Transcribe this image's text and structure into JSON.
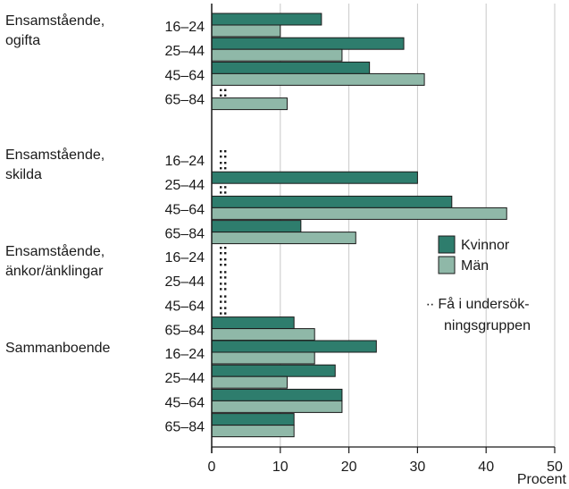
{
  "chart_data": {
    "type": "bar",
    "orientation": "horizontal",
    "xlabel": "Procent",
    "xlim": [
      0,
      50
    ],
    "xticks": [
      0,
      10,
      20,
      30,
      40,
      50
    ],
    "grid": true,
    "legend_position": "right",
    "colors": {
      "Kvinnor": "#2e7d6d",
      "Män": "#8fb8a8",
      "edge": "#1a1a1a",
      "grid": "#c8c8c8"
    },
    "series": [
      {
        "name": "Kvinnor"
      },
      {
        "name": "Män"
      }
    ],
    "legend": {
      "entries": [
        "Kvinnor",
        "Män"
      ],
      "note_symbol": "∙∙",
      "note_lines": [
        "Få i undersök-",
        "ningsgruppen"
      ]
    },
    "groups": [
      {
        "label_lines": [
          "Ensamstående,",
          "ogifta"
        ],
        "rows": [
          {
            "age": "16–24",
            "Kvinnor": 16,
            "Män": 10
          },
          {
            "age": "25–44",
            "Kvinnor": 28,
            "Män": 19
          },
          {
            "age": "45–64",
            "Kvinnor": 23,
            "Män": 31
          },
          {
            "age": "65–84",
            "Kvinnor": null,
            "Män": 11
          }
        ]
      },
      {
        "label_lines": [
          "Ensamstående,",
          "skilda"
        ],
        "rows": [
          {
            "age": "16–24",
            "Kvinnor": null,
            "Män": null
          },
          {
            "age": "25–44",
            "Kvinnor": 30,
            "Män": null
          },
          {
            "age": "45–64",
            "Kvinnor": 35,
            "Män": 43
          },
          {
            "age": "65–84",
            "Kvinnor": 13,
            "Män": 21
          }
        ]
      },
      {
        "label_lines": [
          "Ensamstående,",
          "änkor/änklingar"
        ],
        "rows": [
          {
            "age": "16–24",
            "Kvinnor": null,
            "Män": null
          },
          {
            "age": "25–44",
            "Kvinnor": null,
            "Män": null
          },
          {
            "age": "45–64",
            "Kvinnor": null,
            "Män": null
          },
          {
            "age": "65–84",
            "Kvinnor": 12,
            "Män": 15
          }
        ]
      },
      {
        "label_lines": [
          "Sammanboende"
        ],
        "rows": [
          {
            "age": "16–24",
            "Kvinnor": 24,
            "Män": 15
          },
          {
            "age": "25–44",
            "Kvinnor": 18,
            "Män": 11
          },
          {
            "age": "45–64",
            "Kvinnor": 19,
            "Män": 19
          },
          {
            "age": "65–84",
            "Kvinnor": 12,
            "Män": 12
          }
        ]
      }
    ]
  }
}
